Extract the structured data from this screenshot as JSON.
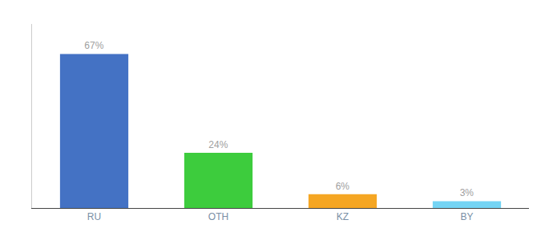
{
  "chart_data": {
    "type": "bar",
    "categories": [
      "RU",
      "OTH",
      "KZ",
      "BY"
    ],
    "values": [
      67,
      24,
      6,
      3
    ],
    "value_labels": [
      "67%",
      "24%",
      "6%",
      "3%"
    ],
    "colors": [
      "#4472c4",
      "#3dcc3d",
      "#f5a623",
      "#74d4f4"
    ],
    "ylim": [
      0,
      80
    ],
    "data_labels": true,
    "tick_labels": "x",
    "grid": false
  }
}
